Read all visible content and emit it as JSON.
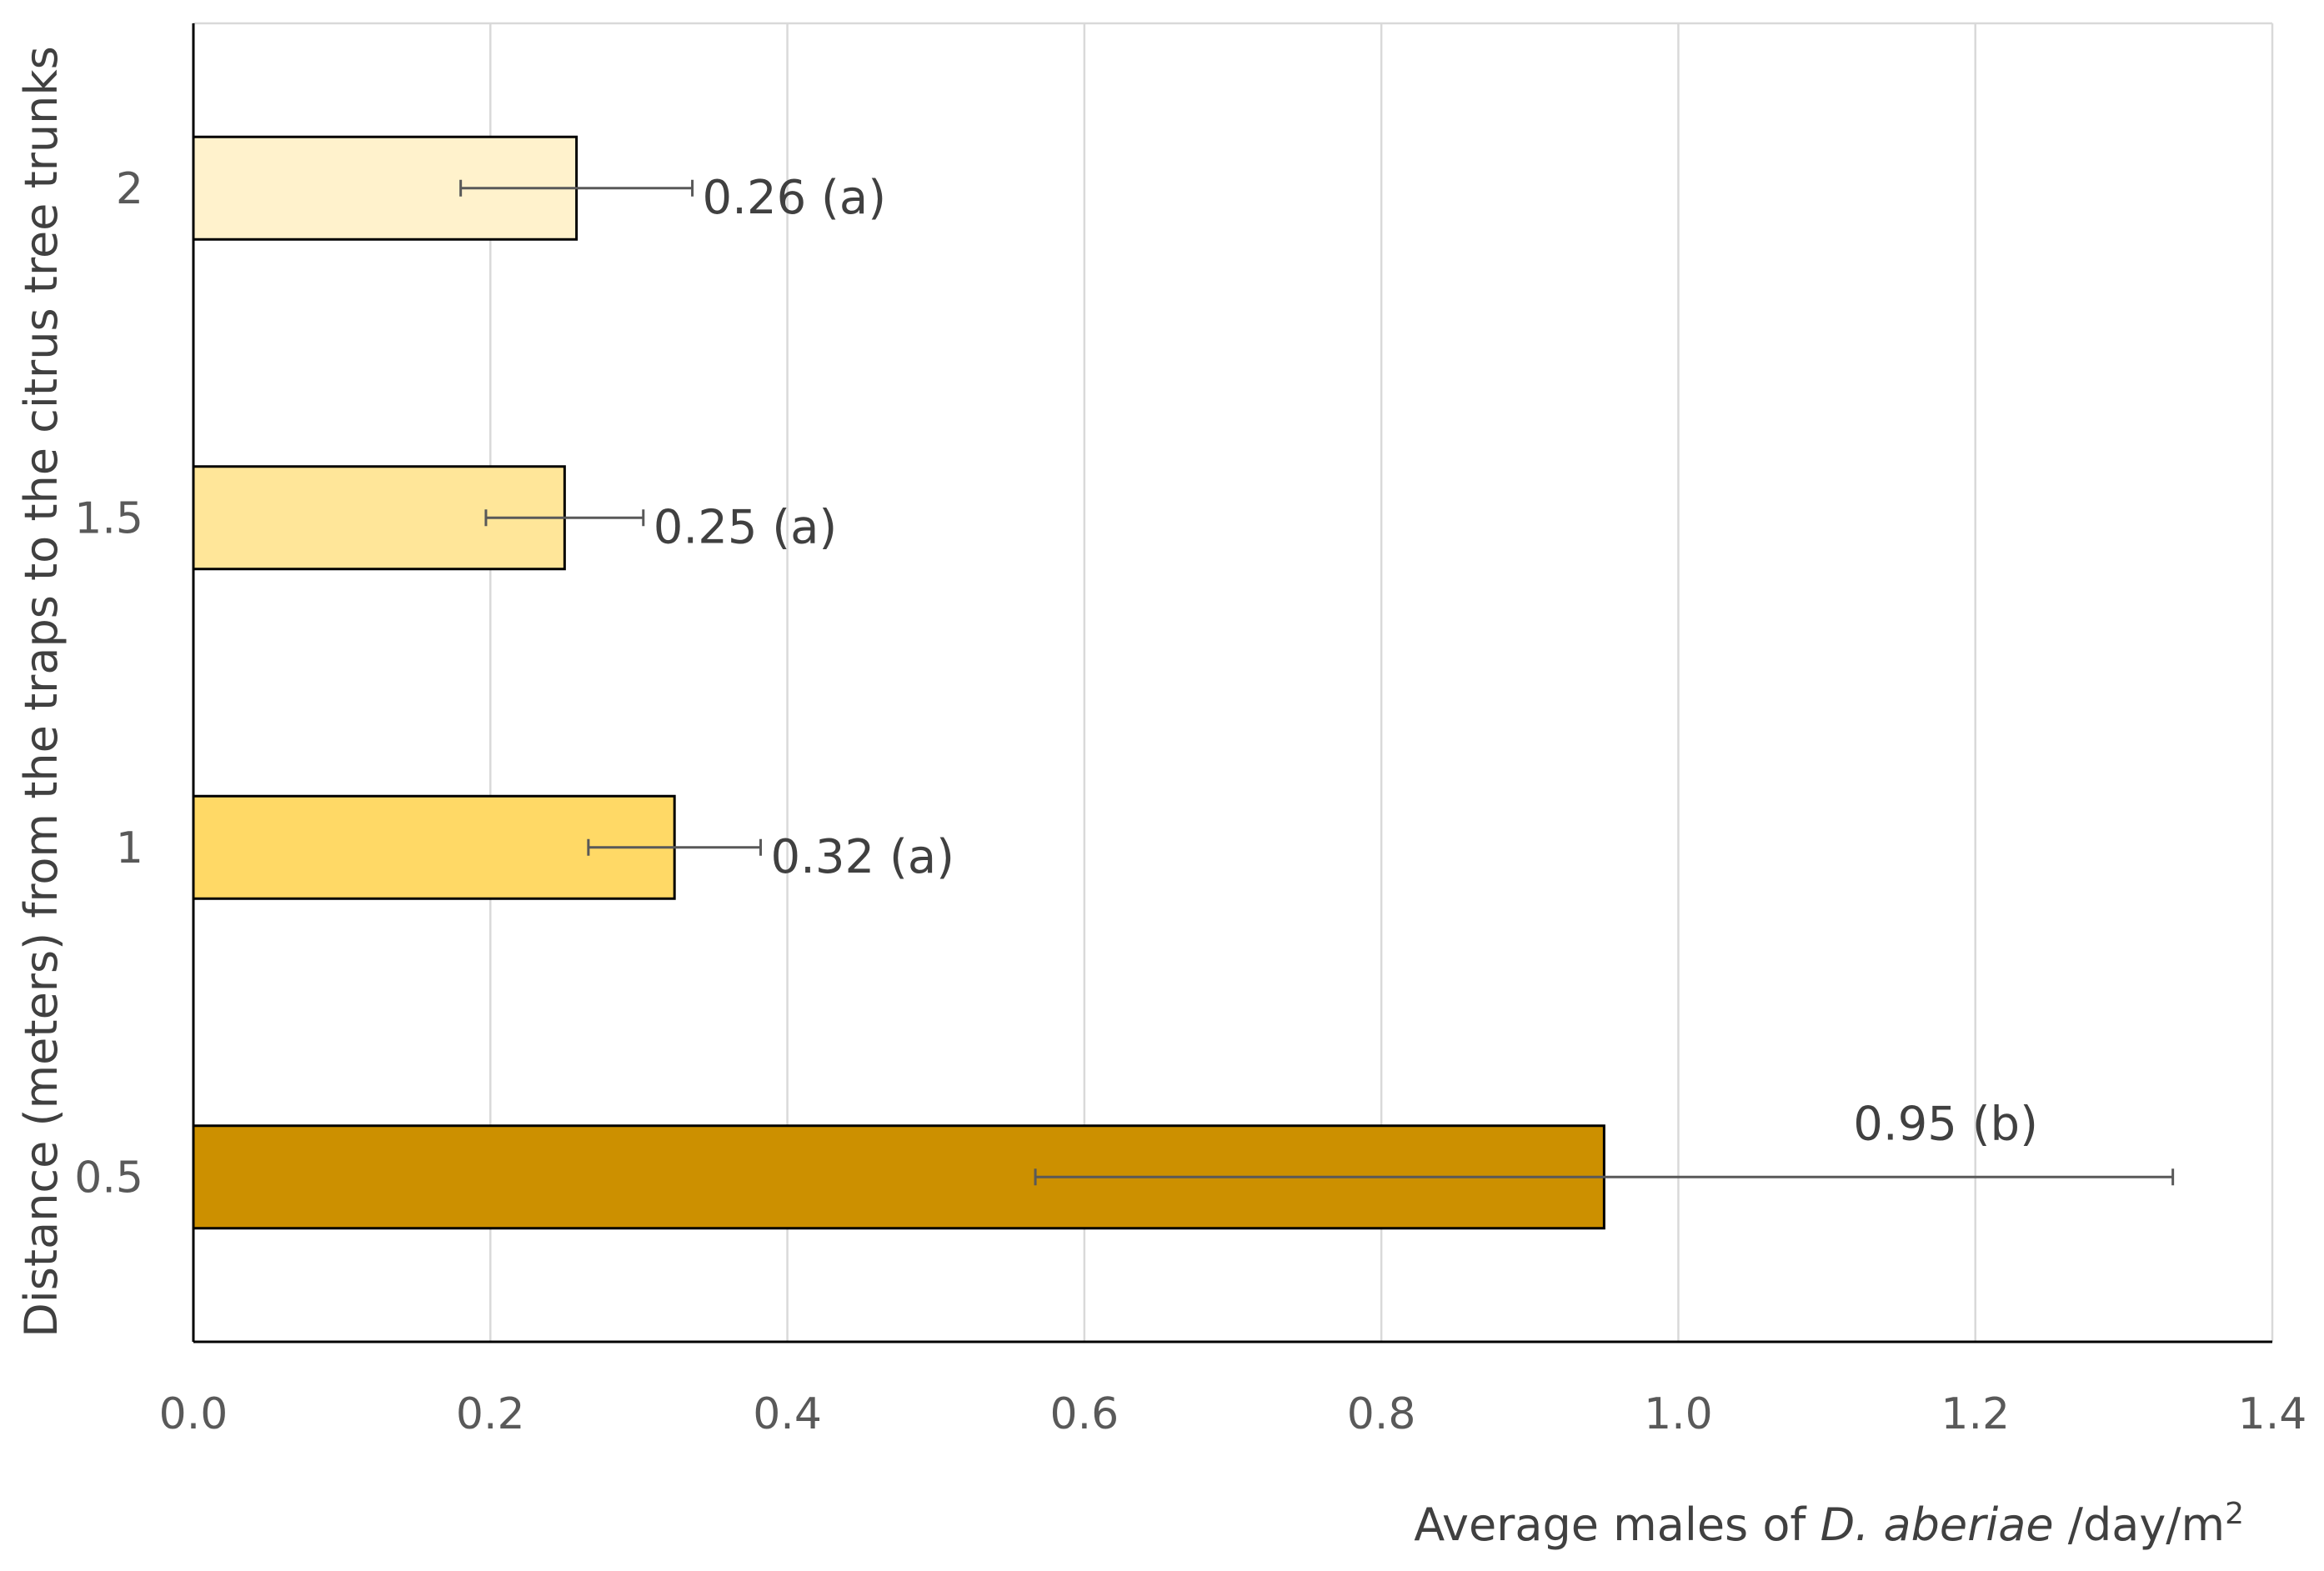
{
  "chart_data": {
    "type": "bar",
    "orientation": "horizontal",
    "title": "",
    "xlabel_parts": {
      "prefix": "Average males of ",
      "species": "D. aberiae",
      "suffix": " /day/m",
      "superscript": "2"
    },
    "ylabel": "Distance (meters) from the traps to the citrus tree trunks",
    "categories": [
      "0.5",
      "1",
      "1.5",
      "2"
    ],
    "values": [
      0.95,
      0.324,
      0.25,
      0.258
    ],
    "error": [
      0.383,
      0.058,
      0.053,
      0.078
    ],
    "labels": [
      "0.95 (b)",
      "0.32 (a)",
      "0.25 (a)",
      "0.26 (a)"
    ],
    "colors": [
      "#CC9000",
      "#FFD966",
      "#FFE699",
      "#FFF2CC"
    ],
    "xlim": [
      0.0,
      1.4
    ],
    "xticks": [
      "0.0",
      "0.2",
      "0.4",
      "0.6",
      "0.8",
      "1.0",
      "1.2",
      "1.4"
    ],
    "grid": true,
    "legend": "none"
  }
}
